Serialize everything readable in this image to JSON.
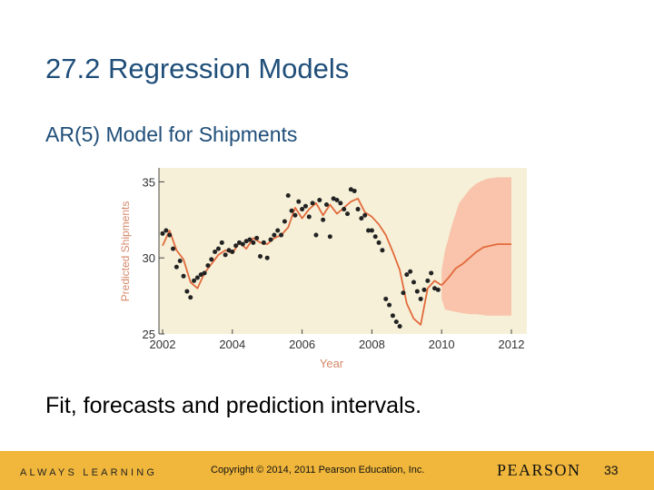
{
  "slide": {
    "title": "27.2 Regression Models",
    "subtitle": "AR(5) Model for Shipments",
    "caption": "Fit, forecasts and prediction intervals."
  },
  "footer": {
    "tagline": "ALWAYS LEARNING",
    "copyright": "Copyright © 2014, 2011 Pearson Education, Inc.",
    "brand": "PEARSON",
    "page_number": "33"
  },
  "colors": {
    "title": "#1f4e79",
    "footer_bar": "#f0b73c",
    "plot_background": "#f6f0d8",
    "fit_line": "#e26a3c",
    "interval_band": "#f9c4ab",
    "points": "#222222",
    "axis_label": "#d4886a"
  },
  "chart_data": {
    "type": "line",
    "xlabel": "Year",
    "ylabel": "Predicted Shipments",
    "xlim": [
      2002,
      2012
    ],
    "ylim": [
      25,
      35.5
    ],
    "x_ticks": [
      "2002",
      "2004",
      "2006",
      "2008",
      "2010",
      "2012"
    ],
    "y_ticks": [
      "25",
      "30",
      "35"
    ],
    "grid": false,
    "series": [
      {
        "kind": "points",
        "x": [
          2002.0,
          2002.1,
          2002.2,
          2002.3,
          2002.4,
          2002.5,
          2002.6,
          2002.7,
          2002.8,
          2002.9,
          2003.0,
          2003.1,
          2003.2,
          2003.3,
          2003.4,
          2003.5,
          2003.6,
          2003.7,
          2003.8,
          2003.9,
          2004.0,
          2004.1,
          2004.2,
          2004.3,
          2004.4,
          2004.5,
          2004.6,
          2004.7,
          2004.8,
          2004.9,
          2005.0,
          2005.1,
          2005.2,
          2005.3,
          2005.4,
          2005.5,
          2005.6,
          2005.7,
          2005.8,
          2005.9,
          2006.0,
          2006.1,
          2006.2,
          2006.3,
          2006.4,
          2006.5,
          2006.6,
          2006.7,
          2006.8,
          2006.9,
          2007.0,
          2007.1,
          2007.2,
          2007.3,
          2007.4,
          2007.5,
          2007.6,
          2007.7,
          2007.8,
          2007.9,
          2008.0,
          2008.1,
          2008.2,
          2008.3,
          2008.4,
          2008.5,
          2008.6,
          2008.7,
          2008.8,
          2008.9,
          2009.0,
          2009.1,
          2009.2,
          2009.3,
          2009.4,
          2009.5,
          2009.6,
          2009.7,
          2009.8,
          2009.9
        ],
        "y": [
          31.6,
          31.8,
          31.5,
          30.6,
          29.4,
          29.8,
          28.8,
          27.8,
          27.4,
          28.5,
          28.7,
          28.9,
          29.0,
          29.5,
          29.9,
          30.4,
          30.6,
          31.0,
          30.2,
          30.5,
          30.4,
          30.8,
          31.0,
          30.9,
          31.1,
          31.2,
          31.0,
          31.3,
          30.1,
          31.0,
          30.0,
          31.2,
          31.5,
          31.8,
          31.5,
          32.4,
          34.1,
          33.1,
          32.8,
          33.7,
          33.2,
          33.4,
          32.7,
          33.6,
          31.5,
          33.8,
          32.5,
          33.5,
          31.4,
          33.9,
          33.8,
          33.6,
          33.2,
          32.9,
          34.5,
          34.4,
          33.2,
          32.6,
          32.8,
          31.8,
          31.8,
          31.4,
          31.0,
          30.5,
          27.3,
          26.9,
          26.2,
          25.8,
          25.5,
          27.7,
          28.9,
          29.1,
          28.4,
          27.8,
          27.3,
          27.9,
          28.5,
          29.0,
          28.0,
          27.9
        ]
      },
      {
        "kind": "fit",
        "x": [
          2002.0,
          2002.2,
          2002.4,
          2002.6,
          2002.8,
          2003.0,
          2003.2,
          2003.4,
          2003.6,
          2003.8,
          2004.0,
          2004.2,
          2004.4,
          2004.6,
          2004.8,
          2005.0,
          2005.2,
          2005.4,
          2005.6,
          2005.8,
          2006.0,
          2006.2,
          2006.4,
          2006.6,
          2006.8,
          2007.0,
          2007.2,
          2007.4,
          2007.6,
          2007.8,
          2008.0,
          2008.2,
          2008.4,
          2008.6,
          2008.8,
          2009.0,
          2009.2,
          2009.4,
          2009.6,
          2009.8,
          2010.0
        ],
        "y": [
          30.8,
          31.8,
          30.5,
          29.9,
          28.4,
          28.0,
          29.0,
          29.6,
          30.2,
          30.5,
          30.3,
          31.0,
          30.6,
          31.3,
          31.0,
          30.9,
          31.3,
          31.5,
          32.0,
          33.3,
          32.6,
          33.2,
          33.6,
          32.8,
          33.5,
          32.9,
          33.3,
          33.7,
          33.9,
          33.0,
          32.7,
          32.2,
          31.5,
          30.4,
          29.2,
          27.0,
          26.0,
          25.6,
          28.0,
          28.5,
          28.2
        ]
      },
      {
        "kind": "forecast",
        "x": [
          2010.0,
          2010.2,
          2010.4,
          2010.6,
          2010.8,
          2011.0,
          2011.2,
          2011.4,
          2011.6,
          2011.8,
          2012.0
        ],
        "y": [
          28.2,
          28.7,
          29.3,
          29.6,
          30.0,
          30.4,
          30.7,
          30.8,
          30.9,
          30.9,
          30.9
        ]
      },
      {
        "kind": "interval",
        "x": [
          2010.0,
          2010.1,
          2010.3,
          2010.5,
          2010.8,
          2011.0,
          2011.3,
          2011.6,
          2012.0
        ],
        "lower": [
          27.3,
          26.6,
          26.5,
          26.4,
          26.3,
          26.3,
          26.2,
          26.2,
          26.2
        ],
        "upper": [
          29.2,
          30.5,
          32.2,
          33.6,
          34.5,
          34.9,
          35.2,
          35.3,
          35.3
        ]
      }
    ]
  }
}
